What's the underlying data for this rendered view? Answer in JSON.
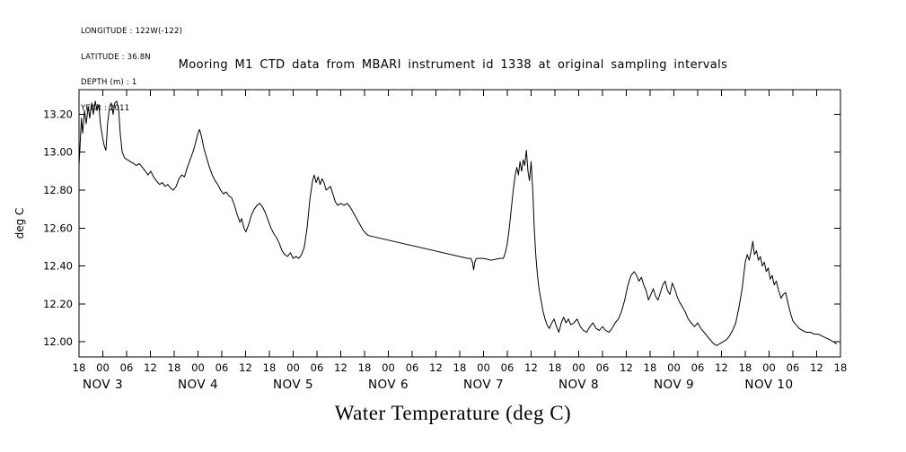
{
  "meta_block": {
    "lines": [
      "LONGITUDE : 122W(-122)",
      "LATITUDE : 36.8N",
      "DEPTH (m) : 1",
      "YEAR : 2011"
    ]
  },
  "title": "Mooring M1 CTD data from MBARI instrument id 1338 at original sampling intervals",
  "footer_label": "Water Temperature (deg C)",
  "colors": {
    "line": "#000000",
    "text": "#000000",
    "background": "#ffffff"
  },
  "y_axis": {
    "label": "deg C",
    "tick_labels": [
      "13.20",
      "13.00",
      "12.80",
      "12.60",
      "12.40",
      "12.20",
      "12.00"
    ],
    "tick_values": [
      13.2,
      13.0,
      12.8,
      12.6,
      12.4,
      12.2,
      12.0
    ]
  },
  "x_axis": {
    "hour_tick_labels": [
      "18",
      "00",
      "06",
      "12",
      "18",
      "00",
      "06",
      "12",
      "18",
      "00",
      "06",
      "12",
      "18",
      "00",
      "06",
      "12",
      "18",
      "00",
      "06",
      "12",
      "18",
      "00",
      "06",
      "12",
      "18",
      "00",
      "06",
      "12",
      "18",
      "00",
      "06",
      "12",
      "18"
    ],
    "day_labels": [
      {
        "label": "NOV 3",
        "t": 6
      },
      {
        "label": "NOV 4",
        "t": 30
      },
      {
        "label": "NOV 5",
        "t": 54
      },
      {
        "label": "NOV 6",
        "t": 78
      },
      {
        "label": "NOV 7",
        "t": 102
      },
      {
        "label": "NOV 8",
        "t": 126
      },
      {
        "label": "NOV 9",
        "t": 150
      },
      {
        "label": "NOV 10",
        "t": 174
      }
    ]
  },
  "chart_data": {
    "type": "line",
    "title": "Mooring M1 CTD data from MBARI instrument id 1338 at original sampling intervals",
    "ylabel": "deg C",
    "xlabel": "Water Temperature (deg C)",
    "series_name": "water temperature (deg C)",
    "ylim": [
      11.92,
      13.33
    ],
    "xlim": [
      0,
      192
    ],
    "x_tick_step": 6,
    "x_unit": "hours, ticks labeled 18/00/06/12, days NOV 3 - NOV 10",
    "grid": false,
    "legend": false,
    "points": [
      [
        0,
        12.93
      ],
      [
        0.3,
        13.05
      ],
      [
        0.6,
        13.18
      ],
      [
        0.9,
        13.1
      ],
      [
        1.4,
        13.22
      ],
      [
        1.8,
        13.15
      ],
      [
        2.3,
        13.24
      ],
      [
        2.7,
        13.18
      ],
      [
        3.2,
        13.26
      ],
      [
        3.6,
        13.2
      ],
      [
        4.1,
        13.27
      ],
      [
        4.5,
        13.22
      ],
      [
        5,
        13.25
      ],
      [
        5.4,
        13.15
      ],
      [
        5.9,
        13.08
      ],
      [
        6.4,
        13.03
      ],
      [
        6.8,
        13.01
      ],
      [
        7.2,
        13.15
      ],
      [
        7.7,
        13.24
      ],
      [
        8.1,
        13.26
      ],
      [
        8.6,
        13.2
      ],
      [
        9,
        13.26
      ],
      [
        9.5,
        13.27
      ],
      [
        10,
        13.22
      ],
      [
        10.4,
        13.1
      ],
      [
        10.9,
        13.0
      ],
      [
        11.5,
        12.97
      ],
      [
        12.2,
        12.96
      ],
      [
        13,
        12.95
      ],
      [
        13.8,
        12.94
      ],
      [
        14.5,
        12.93
      ],
      [
        15.2,
        12.94
      ],
      [
        16,
        12.92
      ],
      [
        16.7,
        12.9
      ],
      [
        17.4,
        12.88
      ],
      [
        18.1,
        12.9
      ],
      [
        18.8,
        12.87
      ],
      [
        19.5,
        12.85
      ],
      [
        20.3,
        12.83
      ],
      [
        21,
        12.84
      ],
      [
        21.7,
        12.82
      ],
      [
        22.4,
        12.83
      ],
      [
        23.1,
        12.81
      ],
      [
        23.8,
        12.8
      ],
      [
        24.5,
        12.82
      ],
      [
        25.2,
        12.86
      ],
      [
        25.9,
        12.88
      ],
      [
        26.6,
        12.87
      ],
      [
        27.3,
        12.92
      ],
      [
        28,
        12.96
      ],
      [
        28.7,
        13.0
      ],
      [
        29.4,
        13.05
      ],
      [
        30,
        13.1
      ],
      [
        30.4,
        13.12
      ],
      [
        30.9,
        13.08
      ],
      [
        31.5,
        13.02
      ],
      [
        32.2,
        12.97
      ],
      [
        32.9,
        12.92
      ],
      [
        33.6,
        12.88
      ],
      [
        34.3,
        12.85
      ],
      [
        35,
        12.83
      ],
      [
        35.7,
        12.8
      ],
      [
        36.4,
        12.78
      ],
      [
        37.1,
        12.79
      ],
      [
        37.8,
        12.77
      ],
      [
        38.5,
        12.76
      ],
      [
        39.2,
        12.72
      ],
      [
        39.9,
        12.67
      ],
      [
        40.6,
        12.63
      ],
      [
        41,
        12.65
      ],
      [
        41.6,
        12.6
      ],
      [
        42.1,
        12.58
      ],
      [
        42.8,
        12.62
      ],
      [
        43.5,
        12.67
      ],
      [
        44.2,
        12.7
      ],
      [
        44.9,
        12.72
      ],
      [
        45.6,
        12.73
      ],
      [
        46.3,
        12.71
      ],
      [
        47,
        12.68
      ],
      [
        47.7,
        12.64
      ],
      [
        48.4,
        12.6
      ],
      [
        49.1,
        12.57
      ],
      [
        49.8,
        12.55
      ],
      [
        50.5,
        12.52
      ],
      [
        51.2,
        12.48
      ],
      [
        51.9,
        12.46
      ],
      [
        52.6,
        12.45
      ],
      [
        53.3,
        12.47
      ],
      [
        54,
        12.44
      ],
      [
        54.7,
        12.45
      ],
      [
        55.4,
        12.44
      ],
      [
        56.1,
        12.46
      ],
      [
        56.8,
        12.5
      ],
      [
        57.5,
        12.6
      ],
      [
        58.2,
        12.75
      ],
      [
        58.9,
        12.85
      ],
      [
        59.3,
        12.88
      ],
      [
        59.8,
        12.84
      ],
      [
        60.3,
        12.87
      ],
      [
        60.8,
        12.83
      ],
      [
        61.3,
        12.86
      ],
      [
        61.8,
        12.84
      ],
      [
        62.3,
        12.8
      ],
      [
        62.9,
        12.81
      ],
      [
        63.4,
        12.82
      ],
      [
        64,
        12.78
      ],
      [
        64.6,
        12.74
      ],
      [
        65.2,
        12.72
      ],
      [
        66,
        12.73
      ],
      [
        66.8,
        12.72
      ],
      [
        67.6,
        12.73
      ],
      [
        68.4,
        12.71
      ],
      [
        69.2,
        12.68
      ],
      [
        70,
        12.65
      ],
      [
        70.8,
        12.62
      ],
      [
        71.6,
        12.59
      ],
      [
        72.4,
        12.57
      ],
      [
        73,
        12.56
      ],
      [
        98,
        12.44
      ],
      [
        98.8,
        12.44
      ],
      [
        99.2,
        12.42
      ],
      [
        99.5,
        12.38
      ],
      [
        99.8,
        12.42
      ],
      [
        100.2,
        12.44
      ],
      [
        102,
        12.44
      ],
      [
        104,
        12.43
      ],
      [
        106,
        12.44
      ],
      [
        107,
        12.44
      ],
      [
        107.5,
        12.47
      ],
      [
        108,
        12.52
      ],
      [
        108.5,
        12.6
      ],
      [
        109,
        12.7
      ],
      [
        109.5,
        12.8
      ],
      [
        110,
        12.88
      ],
      [
        110.4,
        12.92
      ],
      [
        110.8,
        12.88
      ],
      [
        111.2,
        12.95
      ],
      [
        111.6,
        12.9
      ],
      [
        112,
        12.96
      ],
      [
        112.4,
        12.93
      ],
      [
        112.8,
        13.01
      ],
      [
        113.2,
        12.9
      ],
      [
        113.6,
        12.85
      ],
      [
        114,
        12.95
      ],
      [
        114.4,
        12.8
      ],
      [
        114.8,
        12.6
      ],
      [
        115.2,
        12.45
      ],
      [
        115.6,
        12.35
      ],
      [
        116,
        12.28
      ],
      [
        116.5,
        12.22
      ],
      [
        117,
        12.16
      ],
      [
        117.5,
        12.12
      ],
      [
        118,
        12.09
      ],
      [
        118.6,
        12.07
      ],
      [
        119.2,
        12.1
      ],
      [
        119.8,
        12.12
      ],
      [
        120.4,
        12.08
      ],
      [
        121,
        12.05
      ],
      [
        121.6,
        12.1
      ],
      [
        122.2,
        12.13
      ],
      [
        122.8,
        12.1
      ],
      [
        123.4,
        12.12
      ],
      [
        124,
        12.09
      ],
      [
        124.8,
        12.1
      ],
      [
        125.6,
        12.12
      ],
      [
        126.4,
        12.08
      ],
      [
        127.2,
        12.06
      ],
      [
        128,
        12.05
      ],
      [
        128.8,
        12.08
      ],
      [
        129.6,
        12.1
      ],
      [
        130.4,
        12.07
      ],
      [
        131.2,
        12.06
      ],
      [
        132,
        12.08
      ],
      [
        132.8,
        12.06
      ],
      [
        133.6,
        12.05
      ],
      [
        134.4,
        12.07
      ],
      [
        135.2,
        12.1
      ],
      [
        136,
        12.12
      ],
      [
        136.8,
        12.16
      ],
      [
        137.6,
        12.22
      ],
      [
        138.4,
        12.3
      ],
      [
        139.2,
        12.35
      ],
      [
        140,
        12.37
      ],
      [
        140.6,
        12.35
      ],
      [
        141.2,
        12.32
      ],
      [
        141.8,
        12.34
      ],
      [
        142.4,
        12.3
      ],
      [
        143,
        12.27
      ],
      [
        143.6,
        12.22
      ],
      [
        144.2,
        12.25
      ],
      [
        144.8,
        12.28
      ],
      [
        145.4,
        12.24
      ],
      [
        146,
        12.22
      ],
      [
        146.6,
        12.26
      ],
      [
        147.2,
        12.3
      ],
      [
        147.8,
        12.32
      ],
      [
        148.4,
        12.27
      ],
      [
        149,
        12.25
      ],
      [
        149.6,
        12.31
      ],
      [
        150.2,
        12.28
      ],
      [
        150.8,
        12.24
      ],
      [
        151.4,
        12.21
      ],
      [
        152,
        12.19
      ],
      [
        152.8,
        12.16
      ],
      [
        153.6,
        12.12
      ],
      [
        154.4,
        12.1
      ],
      [
        155.2,
        12.08
      ],
      [
        156,
        12.1
      ],
      [
        156.8,
        12.07
      ],
      [
        157.6,
        12.05
      ],
      [
        158.4,
        12.03
      ],
      [
        159.2,
        12.01
      ],
      [
        160,
        11.99
      ],
      [
        160.8,
        11.98
      ],
      [
        161.6,
        11.99
      ],
      [
        162.4,
        12.0
      ],
      [
        163.2,
        12.01
      ],
      [
        164,
        12.03
      ],
      [
        164.8,
        12.06
      ],
      [
        165.6,
        12.1
      ],
      [
        166.4,
        12.18
      ],
      [
        167.2,
        12.28
      ],
      [
        168,
        12.42
      ],
      [
        168.5,
        12.46
      ],
      [
        169,
        12.43
      ],
      [
        169.5,
        12.48
      ],
      [
        169.9,
        12.53
      ],
      [
        170.3,
        12.46
      ],
      [
        170.8,
        12.48
      ],
      [
        171.3,
        12.43
      ],
      [
        171.8,
        12.45
      ],
      [
        172.3,
        12.4
      ],
      [
        172.8,
        12.42
      ],
      [
        173.3,
        12.37
      ],
      [
        173.8,
        12.39
      ],
      [
        174.3,
        12.33
      ],
      [
        174.8,
        12.35
      ],
      [
        175.3,
        12.3
      ],
      [
        175.8,
        12.32
      ],
      [
        176.4,
        12.27
      ],
      [
        177,
        12.23
      ],
      [
        177.6,
        12.25
      ],
      [
        178.2,
        12.26
      ],
      [
        178.8,
        12.2
      ],
      [
        179.4,
        12.15
      ],
      [
        180,
        12.11
      ],
      [
        180.8,
        12.09
      ],
      [
        181.6,
        12.07
      ],
      [
        182.4,
        12.06
      ],
      [
        183.4,
        12.05
      ],
      [
        184.4,
        12.05
      ],
      [
        185.4,
        12.04
      ],
      [
        186.4,
        12.04
      ],
      [
        187.4,
        12.03
      ],
      [
        188.4,
        12.02
      ],
      [
        189.4,
        12.01
      ],
      [
        190.2,
        12.0
      ],
      [
        191,
        11.99
      ]
    ]
  }
}
